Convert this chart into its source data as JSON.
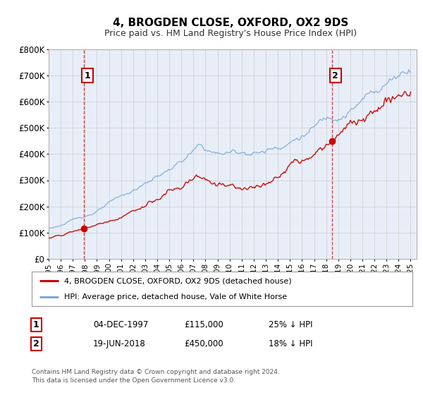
{
  "title": "4, BROGDEN CLOSE, OXFORD, OX2 9DS",
  "subtitle": "Price paid vs. HM Land Registry's House Price Index (HPI)",
  "legend_red": "4, BROGDEN CLOSE, OXFORD, OX2 9DS (detached house)",
  "legend_blue": "HPI: Average price, detached house, Vale of White Horse",
  "annotation1_label": "1",
  "annotation1_date": "04-DEC-1997",
  "annotation1_price": "£115,000",
  "annotation1_hpi": "25% ↓ HPI",
  "annotation2_label": "2",
  "annotation2_date": "19-JUN-2018",
  "annotation2_price": "£450,000",
  "annotation2_hpi": "18% ↓ HPI",
  "footnote1": "Contains HM Land Registry data © Crown copyright and database right 2024.",
  "footnote2": "This data is licensed under the Open Government Licence v3.0.",
  "sale1_year": 1997.92,
  "sale1_value": 115000,
  "sale2_year": 2018.46,
  "sale2_value": 450000,
  "red_color": "#cc0000",
  "blue_color": "#7aaadd",
  "vline_color": "#cc0000",
  "grid_color": "#cccccc",
  "bg_color": "#ffffff",
  "plot_bg_color": "#e8eef8",
  "ylim_max": 800000,
  "ylim_min": 0,
  "xmin": 1995.0,
  "xmax": 2025.5
}
